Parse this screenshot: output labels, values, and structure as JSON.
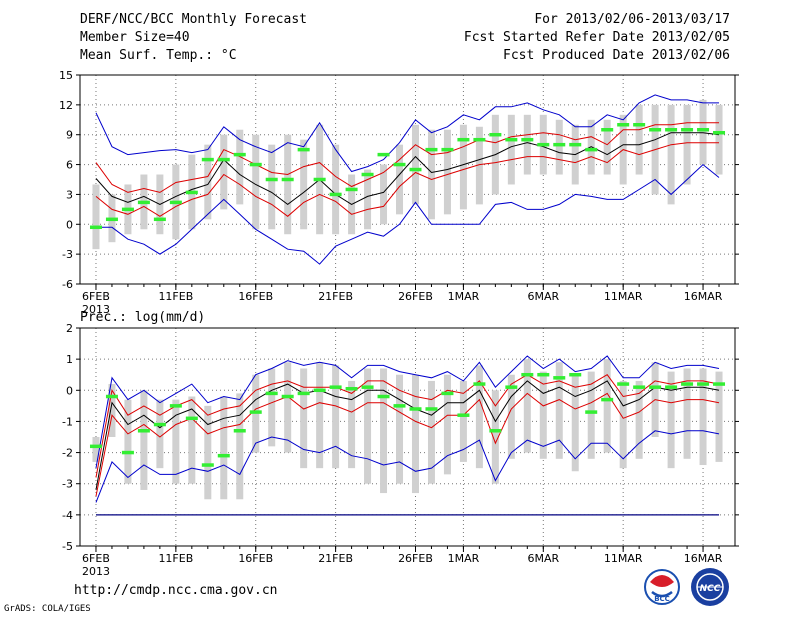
{
  "header": {
    "title": "DERF/NCC/BCC Monthly Forecast",
    "member_size": "Member Size=40",
    "for_range": "For 2013/02/06-2013/03/17",
    "started": "Fcst Started Refer Date 2013/02/05",
    "produced": "Fcst Produced Date 2013/02/06"
  },
  "footer": {
    "url": "http://cmdp.ncc.cma.gov.cn",
    "grads": "GrADS: COLA/IGES",
    "logo_text": "BCC",
    "logo2_text": "NCC"
  },
  "colors": {
    "ensemble_max_min": "#0000cc",
    "quantile": "#dd0000",
    "median": "#000000",
    "box": "#d0d0d0",
    "climate": "#33ee33"
  },
  "chart_data": [
    {
      "type": "box-line",
      "title": "Mean Surf. Temp.: °C",
      "ylim": [
        -6,
        15
      ],
      "yticks": [
        -6,
        -3,
        0,
        3,
        6,
        9,
        12,
        15
      ],
      "xtick_labels": [
        "6FEB",
        "11FEB",
        "16FEB",
        "21FEB",
        "26FEB",
        "1MAR",
        "6MAR",
        "11MAR",
        "16MAR"
      ],
      "xtick_index": [
        0,
        5,
        10,
        15,
        20,
        23,
        28,
        33,
        38
      ],
      "year_label": "2013",
      "days": 40,
      "series": [
        {
          "name": "max",
          "values": [
            11.2,
            7.8,
            7,
            7.2,
            7.4,
            7.5,
            7.2,
            7.5,
            9.8,
            8.5,
            7.8,
            7.2,
            8.2,
            7.8,
            10.2,
            7.5,
            5.3,
            5.8,
            6.5,
            8.2,
            10.5,
            9.2,
            9.8,
            11,
            10.5,
            11.8,
            11.8,
            12.2,
            11.5,
            11,
            9.8,
            9.8,
            11,
            10.5,
            12.2,
            13,
            12.5,
            12.5,
            12.2,
            12.2
          ]
        },
        {
          "name": "q_high",
          "values": [
            6.2,
            4,
            3.2,
            3.6,
            3.2,
            4.2,
            4.5,
            4.8,
            7.5,
            6.8,
            6,
            5.2,
            5,
            5.8,
            6.2,
            4.8,
            3.8,
            4.5,
            5.2,
            6.5,
            8,
            7,
            7.2,
            7.8,
            8.5,
            8.2,
            8.8,
            9,
            9.2,
            9,
            8.5,
            8.8,
            8,
            9.5,
            9.5,
            10,
            10,
            10.2,
            10.2,
            10.2
          ]
        },
        {
          "name": "median",
          "values": [
            4.6,
            2.8,
            2.2,
            2.8,
            2,
            2.8,
            3.5,
            4,
            6.5,
            5,
            4,
            3.2,
            2,
            3.2,
            4.5,
            3,
            2,
            2.8,
            3.2,
            5,
            6.8,
            5.2,
            5.5,
            6,
            6.5,
            7,
            7.8,
            8.2,
            7.8,
            7.2,
            7,
            7.8,
            7,
            8,
            8,
            8.5,
            9.2,
            9.2,
            9.2,
            9
          ]
        },
        {
          "name": "q_low",
          "values": [
            2.8,
            1.5,
            1,
            1.8,
            0.8,
            1.8,
            2.5,
            3,
            5,
            4,
            2.8,
            2,
            0.8,
            2.2,
            3,
            2.3,
            1,
            1.5,
            1.8,
            3.8,
            5.2,
            4.5,
            5,
            5.5,
            6,
            6.2,
            6.5,
            6.8,
            6.8,
            6.5,
            6.2,
            6.8,
            6.2,
            7.5,
            7,
            7.5,
            8,
            8.2,
            8.2,
            8.2
          ]
        },
        {
          "name": "min",
          "values": [
            -0.3,
            -0.3,
            -1.5,
            -2,
            -3,
            -2,
            -0.5,
            1,
            2.5,
            1,
            -0.5,
            -1.5,
            -2.5,
            -2.7,
            -4,
            -2.2,
            -1.5,
            -0.8,
            -1.2,
            0,
            2.2,
            0,
            0,
            0,
            0,
            2,
            2.2,
            1.5,
            1.5,
            2,
            3,
            2.8,
            2.5,
            2.5,
            3.5,
            4.5,
            3,
            4.5,
            6,
            4.7
          ]
        }
      ],
      "boxes_low": [
        -2.5,
        -1.8,
        -1,
        -0.5,
        -1,
        -1.5,
        -0.5,
        0.5,
        1.5,
        2,
        -0.5,
        -0.5,
        -1,
        -0.5,
        -1,
        -1,
        -1,
        -0.5,
        0,
        1,
        2,
        0.5,
        1,
        1.5,
        2,
        3,
        4,
        5,
        5,
        5,
        4,
        5,
        5,
        4,
        5,
        3,
        2,
        4,
        6,
        5
      ],
      "boxes_high": [
        4,
        3,
        4,
        5,
        5,
        6,
        7,
        8,
        9,
        9.5,
        9,
        8,
        9,
        8.5,
        10,
        8,
        5,
        5.5,
        6,
        8,
        10,
        9.5,
        9.5,
        10,
        9.8,
        11,
        11,
        11,
        11,
        10.5,
        10,
        10.5,
        10.5,
        11,
        12,
        12,
        12,
        12,
        12.5,
        12
      ],
      "climate": [
        -0.3,
        0.5,
        1.5,
        2.2,
        0.5,
        2.2,
        3.2,
        6.5,
        6.5,
        7,
        6,
        4.5,
        4.5,
        7.5,
        4.5,
        3,
        3.5,
        5,
        7,
        6,
        5.5,
        7.5,
        7.5,
        8.5,
        8.5,
        9,
        8.5,
        8.5,
        8,
        8,
        8,
        7.5,
        9.5,
        10,
        10,
        9.5,
        9.5,
        9.5,
        9.5,
        9.2
      ]
    },
    {
      "type": "box-line",
      "title": "Prec.: log(mm/d)",
      "ylim": [
        -5,
        2
      ],
      "yticks": [
        -5,
        -4,
        -3,
        -2,
        -1,
        0,
        1,
        2
      ],
      "xtick_labels": [
        "6FEB",
        "11FEB",
        "16FEB",
        "21FEB",
        "26FEB",
        "1MAR",
        "6MAR",
        "11MAR",
        "16MAR"
      ],
      "xtick_index": [
        0,
        5,
        10,
        15,
        20,
        23,
        28,
        33,
        38
      ],
      "year_label": "2013",
      "days": 40,
      "floor_value": -4,
      "series": [
        {
          "name": "max",
          "values": [
            -2.5,
            0.4,
            -0.3,
            0,
            -0.4,
            -0.1,
            0.2,
            -0.4,
            -0.2,
            -0.3,
            0.5,
            0.7,
            0.95,
            0.8,
            0.9,
            0.8,
            0.4,
            0.8,
            0.8,
            0.6,
            0.5,
            0.4,
            0.6,
            0.3,
            0.9,
            0.1,
            0.6,
            1.1,
            0.7,
            1,
            0.6,
            0.7,
            1.1,
            0.4,
            0.4,
            0.9,
            0.7,
            0.8,
            0.8,
            0.7
          ]
        },
        {
          "name": "q_high",
          "values": [
            -2.8,
            0,
            -0.8,
            -0.5,
            -0.8,
            -0.5,
            -0.3,
            -0.8,
            -0.6,
            -0.5,
            0,
            0.2,
            0.3,
            0.1,
            0.1,
            0.1,
            -0.1,
            0.3,
            0.3,
            0,
            -0.2,
            -0.3,
            0,
            -0.1,
            0.3,
            -0.5,
            0.2,
            0.5,
            0.2,
            0.3,
            0.1,
            0.2,
            0.5,
            -0.2,
            -0.1,
            0.3,
            0.2,
            0.3,
            0.3,
            0.2
          ]
        },
        {
          "name": "median",
          "values": [
            -3.2,
            -0.4,
            -1.1,
            -0.8,
            -1.2,
            -0.8,
            -0.6,
            -1.1,
            -0.9,
            -0.8,
            -0.3,
            0,
            0.2,
            -0.1,
            0,
            -0.2,
            -0.3,
            0,
            0,
            -0.3,
            -0.6,
            -0.8,
            -0.4,
            -0.4,
            0,
            -1,
            -0.2,
            0.3,
            -0.1,
            0.1,
            -0.2,
            0,
            0.3,
            -0.5,
            -0.3,
            0.1,
            0,
            0.1,
            0.1,
            0
          ]
        },
        {
          "name": "q_low",
          "values": [
            -3.4,
            -0.8,
            -1.4,
            -1.1,
            -1.5,
            -1.1,
            -0.9,
            -1.4,
            -1.2,
            -1.1,
            -0.6,
            -0.4,
            -0.2,
            -0.6,
            -0.4,
            -0.5,
            -0.7,
            -0.4,
            -0.4,
            -0.7,
            -1,
            -1.2,
            -0.8,
            -0.8,
            -0.3,
            -1.7,
            -0.6,
            -0.1,
            -0.5,
            -0.3,
            -0.6,
            -0.4,
            -0.1,
            -0.9,
            -0.7,
            -0.3,
            -0.4,
            -0.3,
            -0.3,
            -0.4
          ]
        },
        {
          "name": "min",
          "values": [
            -3.6,
            -2.3,
            -2.8,
            -2.4,
            -2.7,
            -2.7,
            -2.5,
            -2.6,
            -2.4,
            -2.7,
            -1.7,
            -1.5,
            -1.6,
            -1.9,
            -2,
            -1.8,
            -2.1,
            -2.2,
            -2.4,
            -2.3,
            -2.6,
            -2.5,
            -2.1,
            -1.9,
            -1.6,
            -2.9,
            -2,
            -1.6,
            -1.8,
            -1.6,
            -2.2,
            -1.7,
            -1.7,
            -2.2,
            -1.7,
            -1.3,
            -1.4,
            -1.3,
            -1.3,
            -1.4
          ]
        }
      ],
      "boxes_low": [
        -2.3,
        -1.5,
        -3,
        -3.2,
        -2.5,
        -3,
        -3,
        -3.5,
        -3.5,
        -3.5,
        -2,
        -1.8,
        -2,
        -2.5,
        -2.5,
        -2.5,
        -2.5,
        -3,
        -3.3,
        -3,
        -3.3,
        -3,
        -2.7,
        -2.3,
        -2.5,
        -3,
        -2.2,
        -2,
        -2.2,
        -2.2,
        -2.6,
        -2.2,
        -2,
        -2.5,
        -2.2,
        -1.5,
        -2.5,
        -2.2,
        -2.4,
        -2.3
      ],
      "boxes_high": [
        -1.5,
        0.2,
        -0.3,
        0,
        -0.3,
        -0.3,
        -0.2,
        -0.5,
        -0.2,
        -0.1,
        0.5,
        0.7,
        0.9,
        0.7,
        0.9,
        0.8,
        0.3,
        0.7,
        0.7,
        0.5,
        0.5,
        0.3,
        0.5,
        0.3,
        0.8,
        0,
        0.5,
        1,
        0.6,
        0.9,
        0.5,
        0.6,
        1,
        0.3,
        0.3,
        0.9,
        0.6,
        0.7,
        0.7,
        0.6
      ],
      "climate": [
        -1.8,
        -0.2,
        -2,
        -1.3,
        -1.1,
        -0.5,
        -0.9,
        -2.4,
        -2.1,
        -1.3,
        -0.7,
        -0.1,
        -0.2,
        -0.1,
        0,
        0.1,
        0.05,
        0.1,
        -0.2,
        -0.5,
        -0.6,
        -0.6,
        -0.1,
        -0.8,
        0.2,
        -1.3,
        0.1,
        0.5,
        0.5,
        0.4,
        0.5,
        -0.7,
        -0.3,
        0.2,
        0.1,
        0.1,
        0.1,
        0.2,
        0.2,
        0.2
      ]
    }
  ]
}
